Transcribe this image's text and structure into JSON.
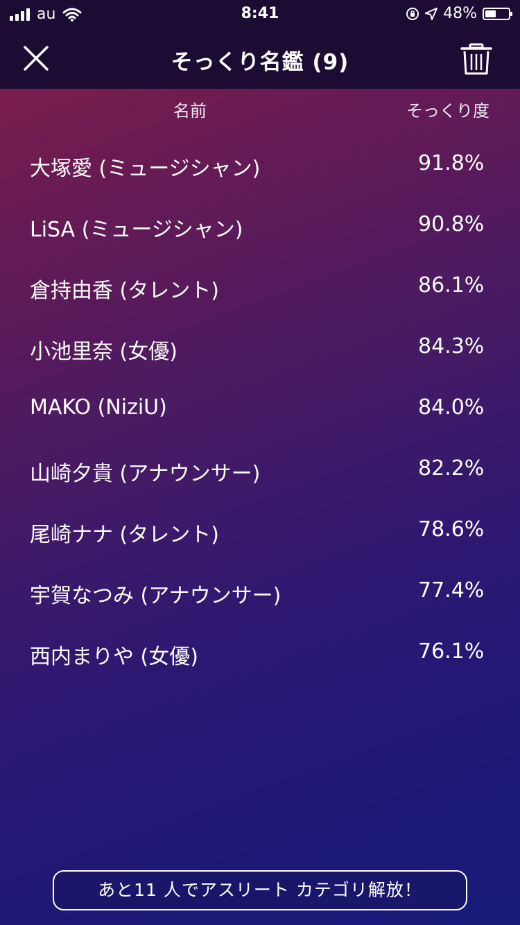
{
  "status_bar": {
    "carrier": "au",
    "time": "8:41",
    "battery_percent": "48%",
    "battery_level": 0.48
  },
  "header": {
    "title": "そっくり名鑑 (9)"
  },
  "columns": {
    "name": "名前",
    "score": "そっくり度"
  },
  "rows": [
    {
      "name": "大塚愛 (ミュージシャン)",
      "score": "91.8%"
    },
    {
      "name": "LiSA (ミュージシャン)",
      "score": "90.8%"
    },
    {
      "name": "倉持由香 (タレント)",
      "score": "86.1%"
    },
    {
      "name": "小池里奈 (女優)",
      "score": "84.3%"
    },
    {
      "name": "MAKO (NiziU)",
      "score": "84.0%"
    },
    {
      "name": "山崎夕貴 (アナウンサー)",
      "score": "82.2%"
    },
    {
      "name": "尾崎ナナ (タレント)",
      "score": "78.6%"
    },
    {
      "name": "宇賀なつみ (アナウンサー)",
      "score": "77.4%"
    },
    {
      "name": "西内まりや (女優)",
      "score": "76.1%"
    }
  ],
  "footer": {
    "unlock_label": "あと11 人でアスリート カテゴリ解放！"
  },
  "icons": {
    "close": "close-icon",
    "delete": "trash-icon",
    "signal": "cellular-signal-icon",
    "wifi": "wifi-icon",
    "lock_rotation": "orientation-lock-icon",
    "location": "location-arrow-icon",
    "battery": "battery-icon"
  }
}
